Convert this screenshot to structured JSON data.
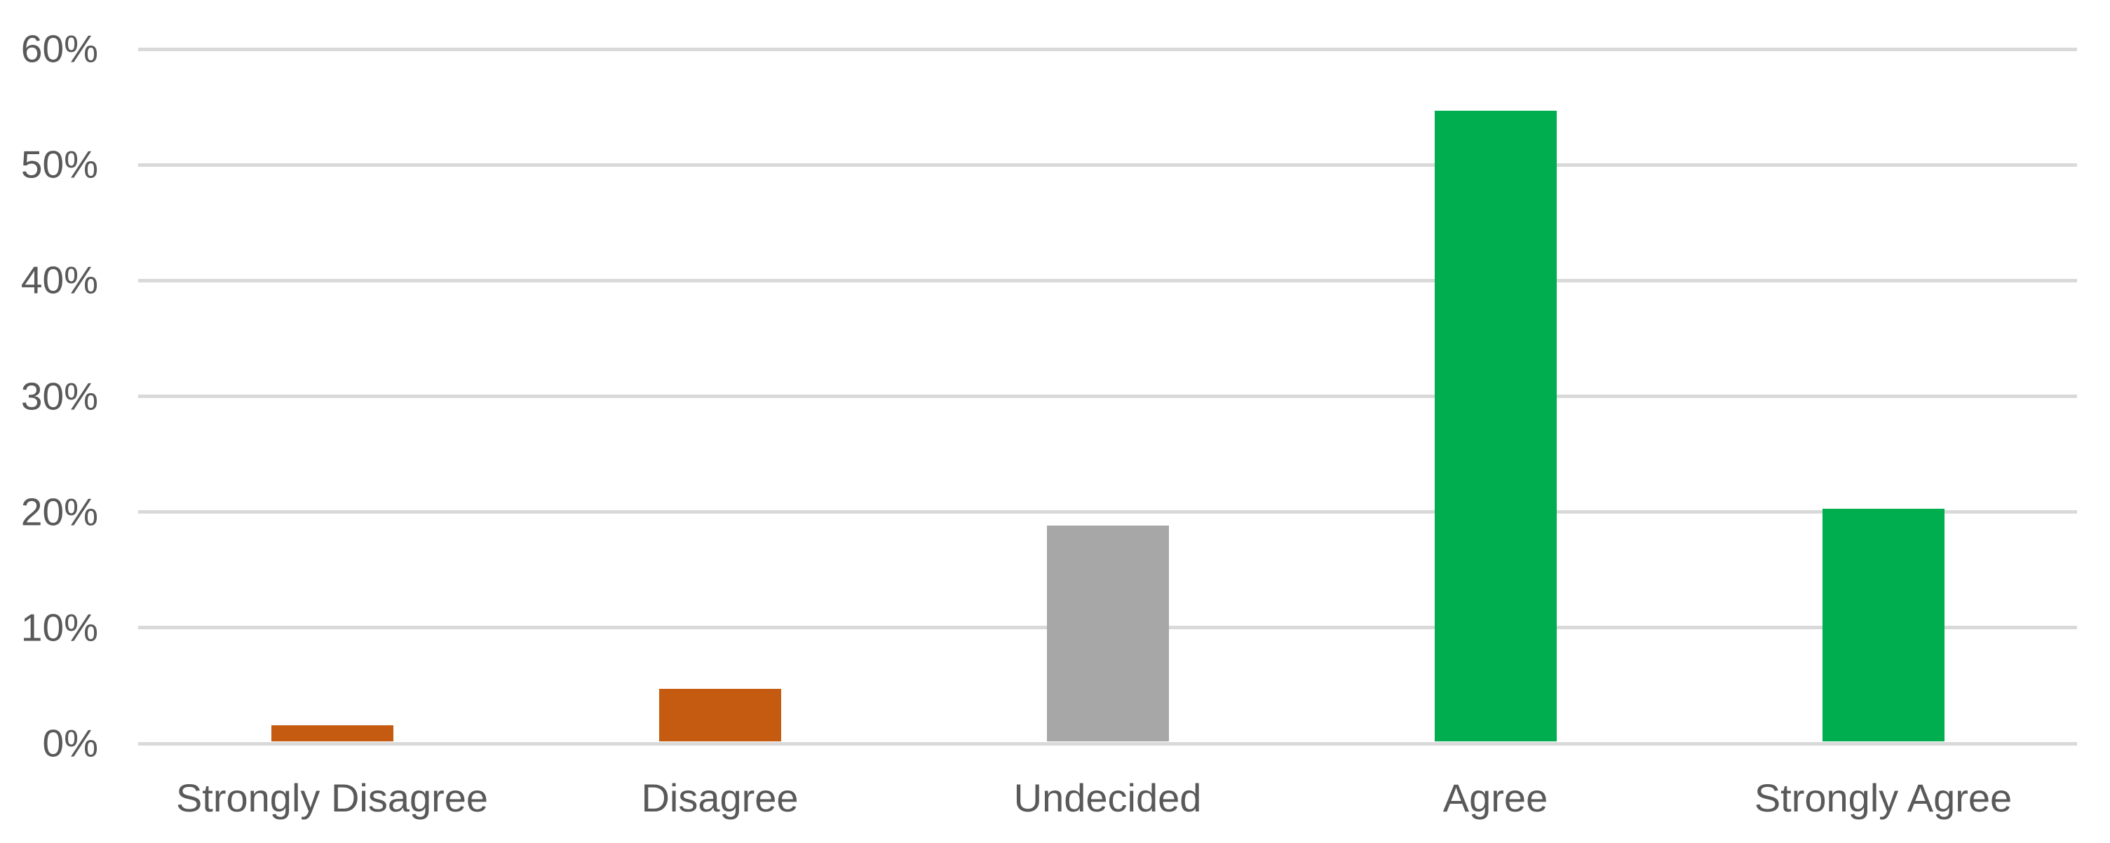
{
  "chart_data": {
    "type": "bar",
    "title": "",
    "xlabel": "",
    "ylabel": "",
    "categories": [
      "Strongly Disagree",
      "Disagree",
      "Undecided",
      "Agree",
      "Strongly Agree"
    ],
    "values": [
      1.6,
      4.7,
      18.8,
      54.7,
      20.3
    ],
    "unit": "%",
    "bar_colors": [
      "#C55A11",
      "#C55A11",
      "#A7A7A7",
      "#00AE50",
      "#00AE50"
    ],
    "ylim": [
      0,
      60
    ],
    "ytick_step": 10,
    "ytick_labels": [
      "0%",
      "10%",
      "20%",
      "30%",
      "40%",
      "50%",
      "60%"
    ],
    "grid": true,
    "legend": false,
    "gridline_color": "#D9D9D9",
    "axis_line_color": "#D9D9D9",
    "label_color": "#595959",
    "background_color": "#FFFFFF"
  }
}
